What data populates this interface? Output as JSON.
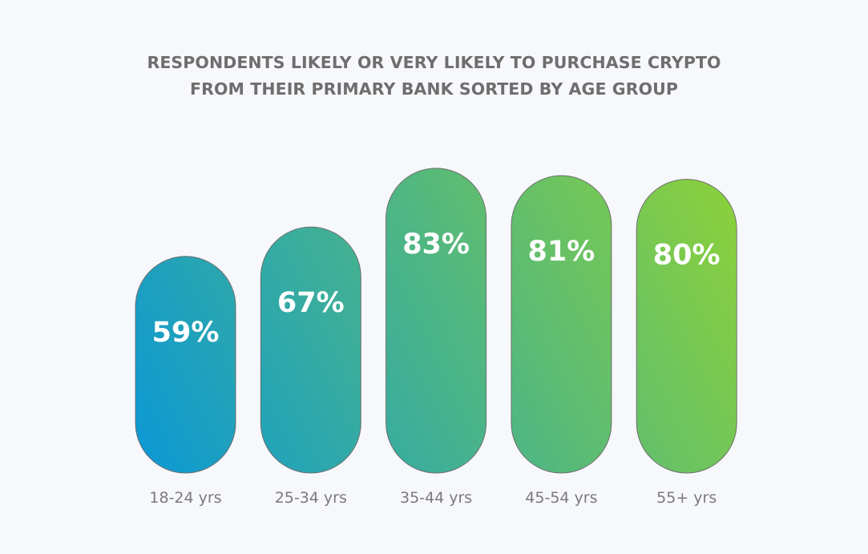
{
  "chart_data": {
    "type": "bar",
    "title_lines": [
      "RESPONDENTS LIKELY OR VERY LIKELY TO PURCHASE CRYPTO",
      "FROM THEIR PRIMARY BANK SORTED BY AGE GROUP"
    ],
    "categories": [
      "18-24 yrs",
      "25-34 yrs",
      "35-44 yrs",
      "45-54 yrs",
      "55+ yrs"
    ],
    "values": [
      59,
      67,
      83,
      81,
      80
    ],
    "value_labels": [
      "59%",
      "67%",
      "83%",
      "81%",
      "80%"
    ],
    "xlabel": "",
    "ylabel": "",
    "ylim": [
      0,
      100
    ],
    "grid": false,
    "gradient_colors": [
      "#0a98d6",
      "#8cd13a"
    ],
    "label_color": "#ffffff",
    "tick_color": "#7a7a7a"
  }
}
